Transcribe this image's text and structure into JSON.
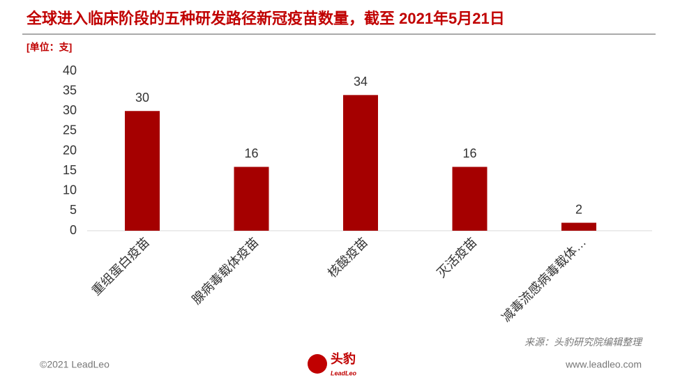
{
  "chart_data": {
    "type": "bar",
    "title": "全球进入临床阶段的五种研发路径新冠疫苗数量，截至 2021年5月21日",
    "unit_label": "[单位：支]",
    "categories": [
      "重组蛋白疫苗",
      "腺病毒载体疫苗",
      "核酸疫苗",
      "灭活疫苗",
      "减毒流感病毒载体…"
    ],
    "values": [
      30,
      16,
      34,
      16,
      2
    ],
    "color": "#a50000",
    "ylim": [
      0,
      40
    ],
    "yticks": [
      0,
      5,
      10,
      15,
      20,
      25,
      30,
      35,
      40
    ],
    "grid": false,
    "source": "来源：头豹研究院编辑整理"
  },
  "footer": {
    "copyright": "©2021 LeadLeo",
    "website": "www.leadleo.com",
    "logo_cn": "头豹",
    "logo_en": "LeadLeo"
  }
}
